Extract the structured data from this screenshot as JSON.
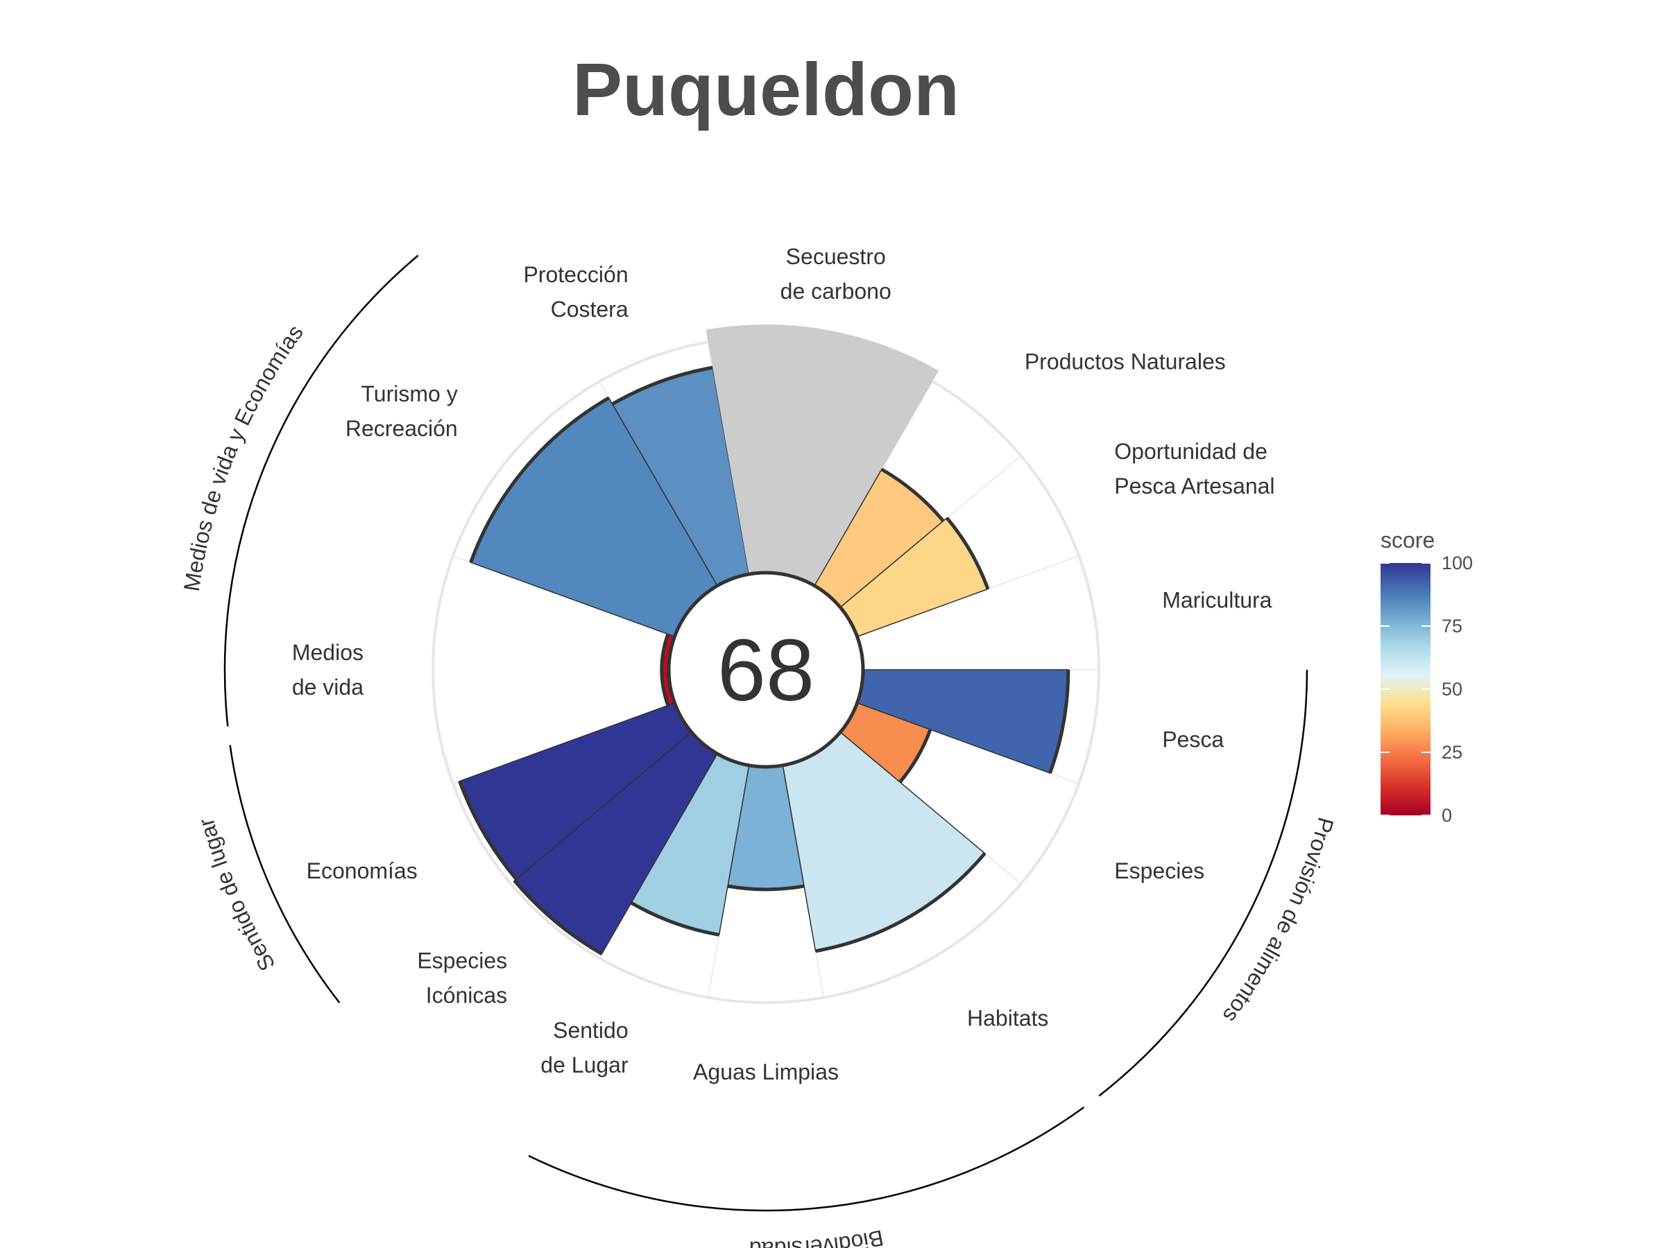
{
  "title": "Puqueldon",
  "chart_data": {
    "type": "polar-bar",
    "title": "Puqueldon",
    "center_score": "68",
    "rlim": [
      0,
      100
    ],
    "categories": [
      {
        "label": [
          "Pesca"
        ],
        "score": 87,
        "color": "#4065AD",
        "weight": 1
      },
      {
        "label": [
          "Especies"
        ],
        "score": 33,
        "color": "#F78D4F",
        "weight": 1
      },
      {
        "label": [
          "Habitats"
        ],
        "score": 80,
        "color": "#CBE6F0",
        "weight": 2
      },
      {
        "label": [
          "Aguas Limpias"
        ],
        "score": 52,
        "color": "#7BB2D5",
        "weight": 1
      },
      {
        "label": [
          "Sentido",
          "de Lugar"
        ],
        "score": 73,
        "color": "#A0CFE3",
        "weight": 1
      },
      {
        "label": [
          "Especies",
          "Icónicas"
        ],
        "score": 98,
        "color": "#313695",
        "weight": 1
      },
      {
        "label": [
          "Economías"
        ],
        "score": 97,
        "color": "#313695",
        "weight": 1
      },
      {
        "label": [
          "Medios",
          "de vida"
        ],
        "score": 3,
        "color": "#BD0D26",
        "weight": 2
      },
      {
        "label": [
          "Turismo y",
          "Recreación"
        ],
        "score": 92,
        "color": "#5388BE",
        "weight": 2
      },
      {
        "label": [
          "Protección",
          "Costera"
        ],
        "score": 89,
        "color": "#5C8FC2",
        "weight": 1
      },
      {
        "label": [
          "Secuestro",
          "de carbono"
        ],
        "score": null,
        "color": "#cccccc",
        "weight": 2
      },
      {
        "label": [
          "Productos Naturales"
        ],
        "score": 57,
        "color": "#FDC97E",
        "weight": 1
      },
      {
        "label": [
          "Oportunidad de",
          "Pesca Artesanal"
        ],
        "score": 59,
        "color": "#FDD787",
        "weight": 1
      },
      {
        "label": [
          "Maricultura"
        ],
        "score": null,
        "color": null,
        "weight": 1
      }
    ],
    "groups": [
      {
        "label": "Provisión de alimentos"
      },
      {
        "label": "Biodiversidad"
      },
      {
        "label": "Sentido de lugar"
      },
      {
        "label": "Medios de vida y Economías"
      }
    ],
    "legend": {
      "title": "score",
      "ticks": [
        "0",
        "25",
        "50",
        "75",
        "100"
      ],
      "colors": [
        "#a50026",
        "#d73027",
        "#f46d43",
        "#fdae61",
        "#fee090",
        "#e0f3f8",
        "#abd9e9",
        "#74add1",
        "#4575b4",
        "#313695"
      ]
    }
  }
}
